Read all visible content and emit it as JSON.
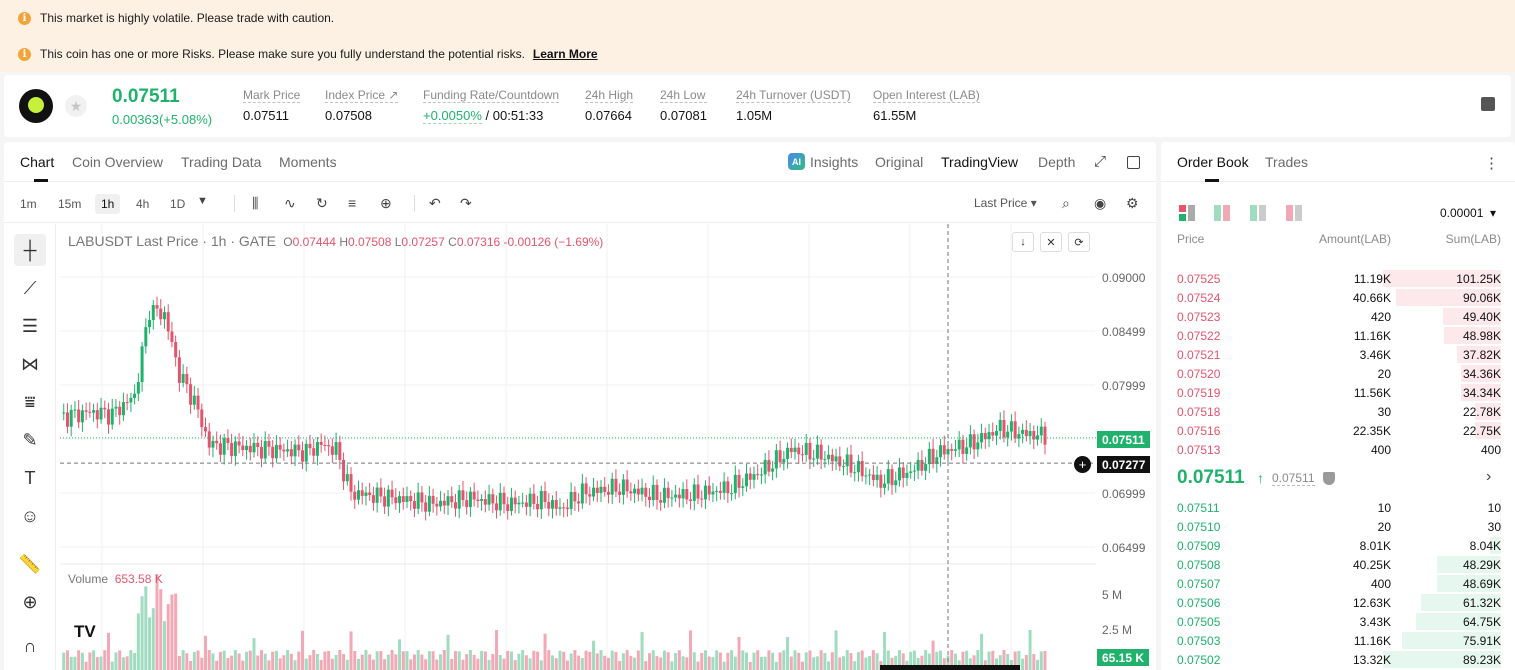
{
  "banners": {
    "volatile": "This market is highly volatile. Please trade with caution.",
    "risk": "This coin has one or more Risks. Please make sure you fully understand the potential risks.",
    "learn_more": "Learn More"
  },
  "ticker": {
    "last_price": "0.07511",
    "change": "0.00363(+5.08%)",
    "stats": [
      {
        "label": "Mark Price",
        "value": "0.07511"
      },
      {
        "label": "Index Price ↗",
        "value": "0.07508"
      },
      {
        "label": "Funding Rate/Countdown",
        "value_green": "+0.0050%",
        "value": " / 00:51:33"
      },
      {
        "label": "24h High",
        "value": "0.07664"
      },
      {
        "label": "24h Low",
        "value": "0.07081"
      },
      {
        "label": "24h Turnover (USDT)",
        "value": "1.05M"
      },
      {
        "label": "Open Interest (LAB)",
        "value": "61.55M"
      }
    ]
  },
  "chart_tabs": {
    "chart": "Chart",
    "coin_overview": "Coin Overview",
    "trading_data": "Trading Data",
    "moments": "Moments",
    "insights": "Insights",
    "original": "Original",
    "tradingview": "TradingView",
    "depth": "Depth",
    "insights_icon_text": "AI"
  },
  "toolbar": {
    "timeframes": [
      "1m",
      "15m",
      "1h",
      "4h",
      "1D"
    ],
    "active_timeframe": "1h",
    "price_type": "Last Price"
  },
  "legend": {
    "symbol": "LABUSDT Last Price · 1h · GATE",
    "o_k": "O",
    "o": "0.07444",
    "h_k": "H",
    "h": "0.07508",
    "l_k": "L",
    "l": "0.07257",
    "c_k": "C",
    "c": "0.07316",
    "chg": "-0.00126 (−1.69%)",
    "volume_label": "Volume",
    "volume_value": "653.58 K"
  },
  "price_axis": [
    "0.09000",
    "0.08499",
    "0.07999",
    "0.06999",
    "0.06499"
  ],
  "price_tags": {
    "last": "0.07511",
    "cross": "0.07277",
    "volume": "65.15 K"
  },
  "volume_axis": [
    "5 M",
    "2.5 M"
  ],
  "order_book": {
    "tabs": {
      "order_book": "Order Book",
      "trades": "Trades"
    },
    "precision": "0.00001",
    "headers": {
      "price": "Price",
      "amount": "Amount(LAB)",
      "sum": "Sum(LAB)"
    },
    "asks": [
      {
        "price": "0.07525",
        "amount": "11.19K",
        "sum": "101.25K",
        "depth": 1.0
      },
      {
        "price": "0.07524",
        "amount": "40.66K",
        "sum": "90.06K",
        "depth": 0.89
      },
      {
        "price": "0.07523",
        "amount": "420",
        "sum": "49.40K",
        "depth": 0.49
      },
      {
        "price": "0.07522",
        "amount": "11.16K",
        "sum": "48.98K",
        "depth": 0.48
      },
      {
        "price": "0.07521",
        "amount": "3.46K",
        "sum": "37.82K",
        "depth": 0.37
      },
      {
        "price": "0.07520",
        "amount": "20",
        "sum": "34.36K",
        "depth": 0.34
      },
      {
        "price": "0.07519",
        "amount": "11.56K",
        "sum": "34.34K",
        "depth": 0.34
      },
      {
        "price": "0.07518",
        "amount": "30",
        "sum": "22.78K",
        "depth": 0.22
      },
      {
        "price": "0.07516",
        "amount": "22.35K",
        "sum": "22.75K",
        "depth": 0.22
      },
      {
        "price": "0.07513",
        "amount": "400",
        "sum": "400",
        "depth": 0.004
      }
    ],
    "mid": {
      "price": "0.07511",
      "arrow": "↑",
      "mark": "0.07511"
    },
    "bids": [
      {
        "price": "0.07511",
        "amount": "10",
        "sum": "10",
        "depth": 0.0001
      },
      {
        "price": "0.07510",
        "amount": "20",
        "sum": "30",
        "depth": 0.0003
      },
      {
        "price": "0.07509",
        "amount": "8.01K",
        "sum": "8.04K",
        "depth": 0.09
      },
      {
        "price": "0.07508",
        "amount": "40.25K",
        "sum": "48.29K",
        "depth": 0.54
      },
      {
        "price": "0.07507",
        "amount": "400",
        "sum": "48.69K",
        "depth": 0.54
      },
      {
        "price": "0.07506",
        "amount": "12.63K",
        "sum": "61.32K",
        "depth": 0.68
      },
      {
        "price": "0.07505",
        "amount": "3.43K",
        "sum": "64.75K",
        "depth": 0.72
      },
      {
        "price": "0.07503",
        "amount": "11.16K",
        "sum": "75.91K",
        "depth": 0.84
      },
      {
        "price": "0.07502",
        "amount": "13.32K",
        "sum": "89.23K",
        "depth": 1.0
      }
    ]
  },
  "colors": {
    "up": "#20b26c",
    "down": "#e4546d",
    "up_vol": "#9fdcc0",
    "down_vol": "#f3a9b5"
  }
}
